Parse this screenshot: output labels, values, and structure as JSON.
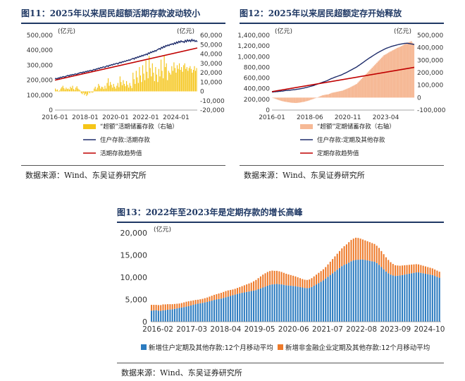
{
  "colors": {
    "title": "#1f3864",
    "yellow_bar": "#f5c518",
    "navy_line": "#1f2d6b",
    "red_line": "#c00000",
    "peach_bar": "#f6b996",
    "blue_bar": "#2b7bc0",
    "orange_bar": "#ee7a2a"
  },
  "source_text": "数据来源：Wind、东吴证券研究所",
  "chart_data": [
    {
      "id": "fig11",
      "title": "图11：2025年以来居民超额活期存款波动较小",
      "type": "bar+line",
      "y_unit_left": "(亿元)",
      "y_unit_right": "(亿元)",
      "ylim_left": [
        0,
        500000
      ],
      "yticks_left": [
        "0",
        "100,000",
        "200,000",
        "300,000",
        "400,000",
        "500,000"
      ],
      "ylim_right": [
        -20000,
        60000
      ],
      "yticks_right": [
        "-20,000",
        "-10,000",
        "0",
        "10,000",
        "20,000",
        "30,000",
        "40,000",
        "50,000",
        "60,000"
      ],
      "x_range": [
        "2016-01",
        "2025-06"
      ],
      "xticks": [
        "2016-01",
        "2018-01",
        "2020-01",
        "2022-01",
        "2024-01"
      ],
      "series": [
        {
          "name": "“超额”活期储蓄存款（右轴）",
          "type": "bar",
          "axis": "right",
          "values": [
            3000,
            1500,
            2000,
            -500,
            1000,
            3000,
            4500,
            6000,
            3500,
            2000,
            4000,
            2500,
            3000,
            2000,
            5000,
            3500,
            6000,
            2500,
            1500,
            4000,
            5500,
            3000,
            2000,
            1000,
            -2000,
            -3000,
            -1500,
            -4000,
            -2500,
            -5000,
            -3500,
            -1000,
            -2000,
            -500,
            -1500,
            -1000,
            3000,
            5000,
            2000,
            4000,
            8000,
            6000,
            3000,
            5000,
            4500,
            2500,
            6000,
            3000,
            9000,
            14000,
            6000,
            10000,
            7000,
            4000,
            8000,
            5000,
            3000,
            6000,
            9000,
            4500,
            16000,
            10000,
            6500,
            12000,
            8000,
            5500,
            11000,
            7000,
            4000,
            9000,
            6000,
            3500,
            20000,
            13000,
            8000,
            22000,
            15000,
            9000,
            26000,
            17000,
            10000,
            28000,
            19000,
            12000,
            33000,
            21000,
            14000,
            38000,
            25000,
            16000,
            30000,
            20000,
            11000,
            26000,
            18000,
            10000,
            24000,
            16000,
            34000,
            22000,
            14000,
            38000,
            26000,
            30000,
            12000,
            22000,
            20000,
            18000,
            27000,
            22000,
            31000,
            25000,
            20000,
            28000,
            24000,
            30000,
            23000,
            26000,
            21000,
            28000,
            30000,
            24000,
            26000,
            22000,
            25000,
            27000,
            24000,
            20000,
            23000,
            27000,
            22000,
            25000
          ]
        },
        {
          "name": "住户存款:活期存款",
          "type": "line",
          "axis": "left",
          "values": [
            210000,
            212000,
            208000,
            215000,
            213000,
            220000,
            218000,
            222000,
            224000,
            220000,
            226000,
            229000,
            232000,
            228000,
            235000,
            233000,
            238000,
            236000,
            240000,
            242000,
            238000,
            244000,
            246000,
            249000,
            252000,
            248000,
            255000,
            251000,
            258000,
            256000,
            262000,
            259000,
            264000,
            266000,
            262000,
            268000,
            272000,
            268000,
            276000,
            274000,
            280000,
            277000,
            284000,
            282000,
            287000,
            289000,
            285000,
            292000,
            296000,
            291000,
            300000,
            298000,
            304000,
            301000,
            308000,
            306000,
            311000,
            313000,
            308000,
            316000,
            320000,
            316000,
            324000,
            321000,
            328000,
            325000,
            332000,
            330000,
            336000,
            333000,
            339000,
            342000,
            346000,
            340000,
            351000,
            347000,
            356000,
            352000,
            361000,
            357000,
            366000,
            362000,
            370000,
            368000,
            375000,
            370000,
            382000,
            378000,
            388000,
            384000,
            393000,
            389000,
            398000,
            394000,
            402000,
            406000,
            412000,
            406000,
            420000,
            414000,
            426000,
            420000,
            432000,
            428000,
            436000,
            430000,
            440000,
            438000,
            444000,
            438000,
            450000,
            443000,
            455000,
            447000,
            460000,
            452000,
            463000,
            456000,
            458000,
            452000,
            466000,
            456000,
            470000,
            460000,
            468000,
            458000,
            472000,
            462000,
            468000,
            458000,
            464000,
            456000
          ]
        },
        {
          "name": "活期存款趋势值",
          "type": "line",
          "axis": "left",
          "start": 200000,
          "end": 415000
        }
      ],
      "legend": [
        "“超额”活期储蓄存款（右轴）",
        "住户存款:活期存款",
        "活期存款趋势值"
      ]
    },
    {
      "id": "fig12",
      "title": "图12：2025年以来居民超额定存开始释放",
      "type": "area+line",
      "y_unit_left": "(亿元)",
      "ylim_left": [
        0,
        1400000
      ],
      "yticks_left": [
        "0",
        "200,000",
        "400,000",
        "600,000",
        "800,000",
        "1,000,000",
        "1,200,000",
        "1,400,000"
      ],
      "ylim_right": [
        -100000,
        500000
      ],
      "yticks_right": [
        "-100,000",
        "0",
        "100,000",
        "200,000",
        "300,000",
        "400,000",
        "500,000"
      ],
      "x_range": [
        "2016-01",
        "2025-06"
      ],
      "xticks": [
        "2016-01",
        "2018-06",
        "2020-11",
        "2023-04"
      ],
      "series": [
        {
          "name": "“超额”定期储蓄存款（右轴）",
          "type": "bar",
          "axis": "right",
          "values": [
            -2000,
            -5000,
            -8000,
            -12000,
            -15000,
            -19000,
            -22000,
            -25000,
            -28000,
            -30000,
            -32000,
            -34000,
            -35000,
            -37000,
            -38000,
            -40000,
            -41000,
            -42000,
            -42000,
            -43000,
            -43000,
            -42000,
            -41000,
            -40000,
            -38000,
            -36000,
            -35000,
            -33000,
            -30000,
            -28000,
            -25000,
            -22000,
            -18000,
            -15000,
            -12000,
            -8000,
            -5000,
            -2000,
            2000,
            6000,
            10000,
            14000,
            18000,
            20000,
            22000,
            24000,
            25000,
            26000,
            30000,
            34000,
            38000,
            40000,
            42000,
            44000,
            46000,
            48000,
            50000,
            52000,
            54000,
            56000,
            60000,
            64000,
            68000,
            72000,
            76000,
            80000,
            85000,
            90000,
            95000,
            100000,
            105000,
            110000,
            120000,
            130000,
            140000,
            150000,
            160000,
            170000,
            180000,
            190000,
            200000,
            210000,
            220000,
            230000,
            240000,
            250000,
            260000,
            270000,
            280000,
            290000,
            300000,
            310000,
            320000,
            330000,
            340000,
            345000,
            350000,
            356000,
            362000,
            368000,
            372000,
            378000,
            382000,
            388000,
            392000,
            398000,
            402000,
            406000,
            410000,
            415000,
            420000,
            425000,
            430000,
            436000,
            440000,
            445000,
            448000,
            452000,
            440000,
            430000
          ]
        },
        {
          "name": "住户存款:定期及其他存款",
          "type": "line",
          "axis": "left",
          "values": [
            340000,
            338000,
            345000,
            342000,
            348000,
            346000,
            352000,
            350000,
            356000,
            354000,
            360000,
            364000,
            368000,
            366000,
            372000,
            370000,
            376000,
            378000,
            382000,
            380000,
            386000,
            390000,
            392000,
            396000,
            400000,
            404000,
            410000,
            414000,
            420000,
            424000,
            430000,
            436000,
            442000,
            448000,
            454000,
            460000,
            470000,
            478000,
            486000,
            494000,
            502000,
            510000,
            518000,
            526000,
            534000,
            542000,
            550000,
            560000,
            572000,
            582000,
            592000,
            600000,
            610000,
            618000,
            626000,
            634000,
            642000,
            650000,
            658000,
            668000,
            680000,
            690000,
            700000,
            712000,
            724000,
            736000,
            748000,
            760000,
            772000,
            784000,
            796000,
            808000,
            825000,
            840000,
            856000,
            872000,
            888000,
            904000,
            920000,
            936000,
            952000,
            968000,
            982000,
            996000,
            1012000,
            1026000,
            1040000,
            1054000,
            1068000,
            1080000,
            1092000,
            1104000,
            1116000,
            1128000,
            1140000,
            1150000,
            1160000,
            1168000,
            1176000,
            1184000,
            1192000,
            1198000,
            1204000,
            1210000,
            1216000,
            1222000,
            1228000,
            1232000,
            1236000,
            1240000,
            1244000,
            1248000,
            1250000,
            1252000,
            1248000,
            1244000,
            1240000,
            1236000,
            1232000,
            1228000
          ]
        },
        {
          "name": "定期存款趋势值",
          "type": "line",
          "axis": "left",
          "start": 345000,
          "end": 800000
        }
      ],
      "legend": [
        "“超额”定期储蓄存款（右轴）",
        "住户存款:定期及其他存款",
        "定期存款趋势值"
      ]
    },
    {
      "id": "fig13",
      "title": "图13：2022年至2023年是定期存款的增长高峰",
      "type": "stacked_bar",
      "y_unit_left": "(亿元)",
      "ylim_left": [
        0,
        20000
      ],
      "yticks_left": [
        "0",
        "5,000",
        "10,000",
        "15,000",
        "20,000"
      ],
      "xticks": [
        "2016-02",
        "2017-03",
        "2018-04",
        "2019-05",
        "2020-06",
        "2021-07",
        "2022-08",
        "2023-09",
        "2024-10"
      ],
      "series": [
        {
          "name": "新增住户定期及其他存款:12个月移动平均",
          "values": [
            2500,
            2550,
            2600,
            2500,
            2450,
            2550,
            2600,
            2700,
            2750,
            2800,
            2900,
            3000,
            3100,
            3200,
            3300,
            3400,
            3500,
            3650,
            3800,
            3950,
            4050,
            4150,
            4250,
            4350,
            4450,
            4600,
            4750,
            4900,
            5000,
            5100,
            5200,
            5350,
            5500,
            5650,
            5800,
            5950,
            6100,
            6250,
            6400,
            6500,
            6600,
            6700,
            6800,
            6900,
            7000,
            7100,
            7300,
            7500,
            7700,
            7900,
            8100,
            8300,
            8400,
            8450,
            8500,
            8450,
            8400,
            8300,
            8200,
            8150,
            8100,
            8050,
            8000,
            7900,
            7800,
            7700,
            7600,
            7550,
            7600,
            7800,
            8100,
            8400,
            8700,
            9000,
            9300,
            9700,
            10100,
            10500,
            10900,
            11300,
            11700,
            12100,
            12500,
            12800,
            13000,
            13300,
            13600,
            13800,
            13900,
            13950,
            14000,
            14000,
            13900,
            13800,
            13700,
            13600,
            13500,
            13200,
            12800,
            12300,
            11800,
            11300,
            10900,
            10600,
            10400,
            10300,
            10350,
            10400,
            10500,
            10600,
            10700,
            10800,
            10900,
            11000,
            11100,
            11100,
            11000,
            10900,
            10800,
            10700,
            10600,
            10500,
            10300,
            10100,
            9900
          ]
        },
        {
          "name": "新增非金融企业定期及其他存款:12个月移动平均",
          "values": [
            1300,
            1250,
            1200,
            1250,
            1300,
            1350,
            1300,
            1250,
            1200,
            1150,
            1100,
            1050,
            1000,
            1000,
            1050,
            1100,
            1100,
            1050,
            1000,
            950,
            900,
            900,
            900,
            950,
            1000,
            1050,
            1100,
            1150,
            1200,
            1250,
            1300,
            1350,
            1400,
            1400,
            1350,
            1300,
            1300,
            1350,
            1400,
            1500,
            1600,
            1700,
            1800,
            1900,
            2100,
            2300,
            2500,
            2700,
            2900,
            3000,
            3100,
            3100,
            3100,
            3000,
            2950,
            2900,
            2800,
            2700,
            2600,
            2500,
            2400,
            2300,
            2200,
            2100,
            2000,
            1900,
            1850,
            1850,
            1900,
            2000,
            2100,
            2200,
            2300,
            2400,
            2500,
            2600,
            2800,
            3000,
            3200,
            3400,
            3600,
            3800,
            4000,
            4200,
            4400,
            4600,
            4800,
            4900,
            5000,
            4900,
            4700,
            4500,
            4400,
            4300,
            4200,
            4100,
            4000,
            3900,
            3800,
            3600,
            3400,
            3200,
            3000,
            2800,
            2600,
            2400,
            2300,
            2200,
            2150,
            2100,
            2050,
            2000,
            1950,
            1900,
            1850,
            1800,
            1750,
            1700,
            1650,
            1600,
            1550,
            1500,
            1450,
            1400,
            1350
          ]
        }
      ],
      "legend": [
        "新增住户定期及其他存款:12个月移动平均",
        "新增非金融企业定期及其他存款:12个月移动平均"
      ]
    }
  ]
}
